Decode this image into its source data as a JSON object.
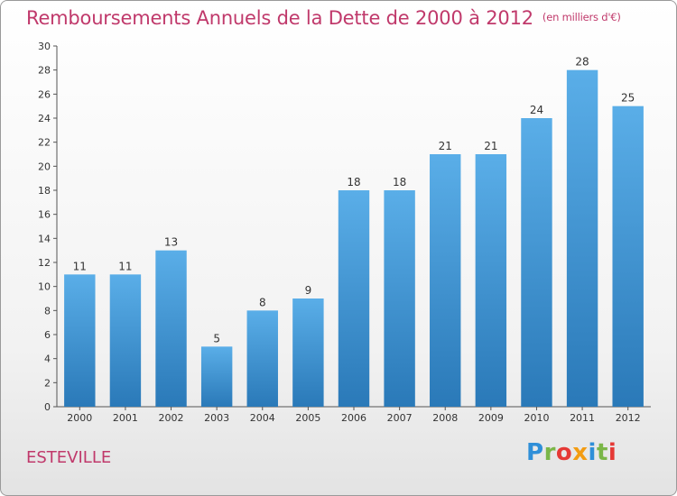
{
  "header": {
    "title": "Remboursements Annuels de la Dette de 2000 à 2012",
    "unit": "(en milliers d'€)"
  },
  "commune": "ESTEVILLE",
  "logo": {
    "letters": [
      "P",
      "r",
      "o",
      "x",
      "i",
      "t",
      "i"
    ],
    "colors": [
      "#2f8fd8",
      "#7ab648",
      "#e53935",
      "#f39c12",
      "#2f8fd8",
      "#7ab648",
      "#e53935"
    ]
  },
  "colors": {
    "bar_light": "#5aaee8",
    "bar_dark": "#2a79b8",
    "title": "#c0396b"
  },
  "chart_data": {
    "type": "bar",
    "categories": [
      "2000",
      "2001",
      "2002",
      "2003",
      "2004",
      "2005",
      "2006",
      "2007",
      "2008",
      "2009",
      "2010",
      "2011",
      "2012"
    ],
    "values": [
      11,
      11,
      13,
      5,
      8,
      9,
      18,
      18,
      21,
      21,
      24,
      28,
      25
    ],
    "title": "Remboursements Annuels de la Dette de 2000 à 2012",
    "xlabel": "",
    "ylabel": "",
    "ylim": [
      0,
      30
    ],
    "yticks": [
      0,
      2,
      4,
      6,
      8,
      10,
      12,
      14,
      16,
      18,
      20,
      22,
      24,
      26,
      28,
      30
    ],
    "grid": false,
    "data_labels": true
  }
}
